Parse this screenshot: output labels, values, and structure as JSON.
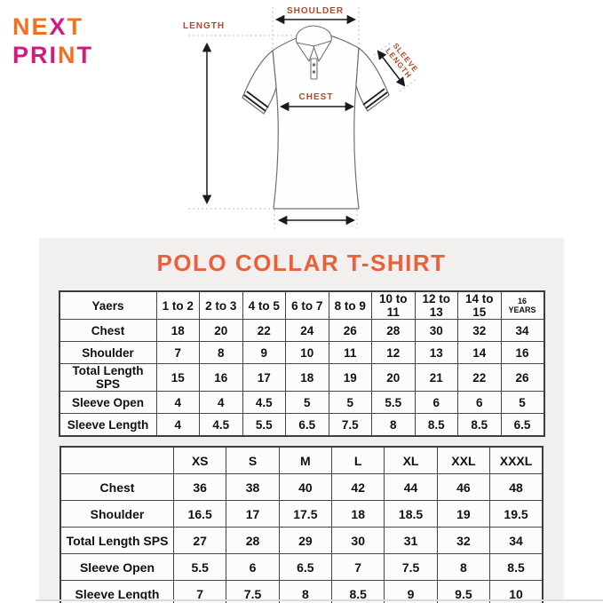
{
  "logo": {
    "next1": "NE",
    "next2": "X",
    "next3": "T",
    "print1": "PRI",
    "print2": "N",
    "print3": "T"
  },
  "header": {
    "title": "POLO COLLAR T-SHIRT"
  },
  "diagram": {
    "labels": {
      "length": "LENGTH",
      "shoulder": "SHOULDER",
      "chest": "CHEST",
      "sleeve1": "SLEEVE",
      "sleeve2": "LENGTH"
    }
  },
  "colors": {
    "logo_orange": "#f37021",
    "logo_pink": "#d6197f",
    "title_orange": "#e8613b",
    "diagram_label": "#b04a2c",
    "panel_bg": "#f2f0ee"
  },
  "tables": [
    {
      "name": "kids-sizes",
      "headers": [
        "Yaers",
        "1 to 2",
        "2 to 3",
        "4 to 5",
        "6 to 7",
        "8 to 9",
        "10 to 11",
        "12 to 13",
        "14 to 15",
        "16 YEARS"
      ],
      "rows": [
        {
          "label": "Chest",
          "values": [
            "18",
            "20",
            "22",
            "24",
            "26",
            "28",
            "30",
            "32",
            "34"
          ]
        },
        {
          "label": "Shoulder",
          "values": [
            "7",
            "8",
            "9",
            "10",
            "11",
            "12",
            "13",
            "14",
            "16"
          ]
        },
        {
          "label": "Total Length SPS",
          "values": [
            "15",
            "16",
            "17",
            "18",
            "19",
            "20",
            "21",
            "22",
            "26"
          ]
        },
        {
          "label": "Sleeve Open",
          "values": [
            "4",
            "4",
            "4.5",
            "5",
            "5",
            "5.5",
            "6",
            "6",
            "5"
          ]
        },
        {
          "label": "Sleeve Length",
          "values": [
            "4",
            "4.5",
            "5.5",
            "6.5",
            "7.5",
            "8",
            "8.5",
            "8.5",
            "6.5"
          ]
        }
      ]
    },
    {
      "name": "adult-sizes",
      "headers": [
        "",
        "XS",
        "S",
        "M",
        "L",
        "XL",
        "XXL",
        "XXXL"
      ],
      "rows": [
        {
          "label": "Chest",
          "values": [
            "36",
            "38",
            "40",
            "42",
            "44",
            "46",
            "48"
          ]
        },
        {
          "label": "Shoulder",
          "values": [
            "16.5",
            "17",
            "17.5",
            "18",
            "18.5",
            "19",
            "19.5"
          ]
        },
        {
          "label": "Total Length SPS",
          "values": [
            "27",
            "28",
            "29",
            "30",
            "31",
            "32",
            "34"
          ]
        },
        {
          "label": "Sleeve Open",
          "values": [
            "5.5",
            "6",
            "6.5",
            "7",
            "7.5",
            "8",
            "8.5"
          ]
        },
        {
          "label": "Sleeve Length",
          "values": [
            "7",
            "7.5",
            "8",
            "8.5",
            "9",
            "9.5",
            "10"
          ]
        }
      ]
    }
  ]
}
